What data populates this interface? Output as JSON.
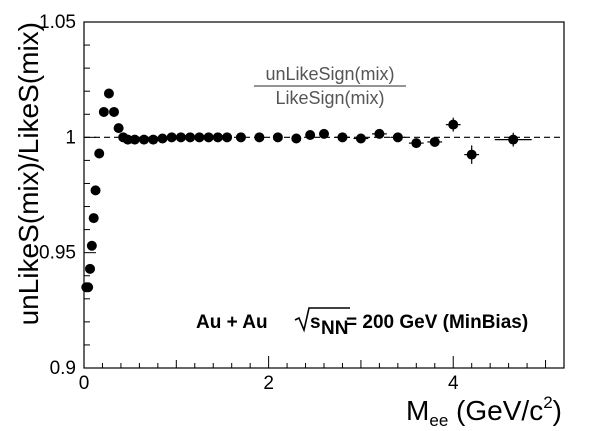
{
  "chart_data": {
    "type": "scatter",
    "title": "",
    "xlabel": {
      "main": "M",
      "sub": "ee",
      "rest": " (GeV/c",
      "sup": "2",
      "close": ")"
    },
    "ylabel": "unLikeS(mix)/LikeS(mix)",
    "xlim": [
      0,
      5.2
    ],
    "ylim": [
      0.9,
      1.05
    ],
    "x_ticks": [
      "0",
      "2",
      "4"
    ],
    "x_tick_values": [
      0,
      2,
      4
    ],
    "y_ticks": [
      "0.9",
      "0.95",
      "1",
      "1.05"
    ],
    "y_tick_values": [
      0.9,
      0.95,
      1.0,
      1.05
    ],
    "reference_line": 1.0,
    "annotation_ratio": {
      "numerator": "unLikeSign(mix)",
      "denominator": "LikeSign(mix)"
    },
    "annotation_system": {
      "left": "Au + Au",
      "s": "s",
      "nn": "NN",
      "right": " = 200 GeV (MinBias)"
    },
    "series": [
      {
        "points": [
          [
            0.025,
            0.935,
            0,
            0
          ],
          [
            0.045,
            0.935,
            0,
            0
          ],
          [
            0.065,
            0.943,
            0,
            0
          ],
          [
            0.085,
            0.953,
            0,
            0
          ],
          [
            0.105,
            0.965,
            0,
            0
          ],
          [
            0.125,
            0.977,
            0,
            0
          ],
          [
            0.165,
            0.993,
            0,
            0
          ],
          [
            0.215,
            1.011,
            0,
            0
          ],
          [
            0.27,
            1.019,
            0,
            0
          ],
          [
            0.325,
            1.011,
            0,
            0
          ],
          [
            0.375,
            1.004,
            0,
            0
          ],
          [
            0.425,
            1.0,
            0,
            0
          ],
          [
            0.475,
            0.999,
            0,
            0
          ],
          [
            0.55,
            0.999,
            0,
            0
          ],
          [
            0.65,
            0.999,
            0,
            0
          ],
          [
            0.75,
            0.999,
            0,
            0
          ],
          [
            0.85,
            0.9995,
            0,
            0
          ],
          [
            0.95,
            1.0,
            0,
            0
          ],
          [
            1.05,
            1.0,
            0,
            0
          ],
          [
            1.15,
            1.0,
            0,
            0
          ],
          [
            1.25,
            1.0,
            0,
            0
          ],
          [
            1.35,
            1.0,
            0,
            0
          ],
          [
            1.45,
            1.0,
            0,
            0
          ],
          [
            1.55,
            1.0,
            0,
            0
          ],
          [
            1.7,
            1.0,
            0.05,
            0
          ],
          [
            1.9,
            1.0,
            0.05,
            0
          ],
          [
            2.1,
            1.0,
            0.05,
            0.0005
          ],
          [
            2.3,
            0.9995,
            0.05,
            0.0008
          ],
          [
            2.45,
            1.001,
            0.05,
            0.0008
          ],
          [
            2.6,
            1.0015,
            0.05,
            0.001
          ],
          [
            2.8,
            1.0,
            0.08,
            0.001
          ],
          [
            3.0,
            0.9995,
            0.08,
            0.001
          ],
          [
            3.2,
            1.0015,
            0.08,
            0.0012
          ],
          [
            3.4,
            1.0,
            0.08,
            0.0015
          ],
          [
            3.6,
            0.9975,
            0.08,
            0.002
          ],
          [
            3.8,
            0.998,
            0.08,
            0.002
          ],
          [
            4.0,
            1.0055,
            0.08,
            0.003
          ],
          [
            4.2,
            0.9925,
            0.08,
            0.004
          ],
          [
            4.65,
            0.999,
            0.2,
            0.003
          ]
        ]
      }
    ]
  }
}
